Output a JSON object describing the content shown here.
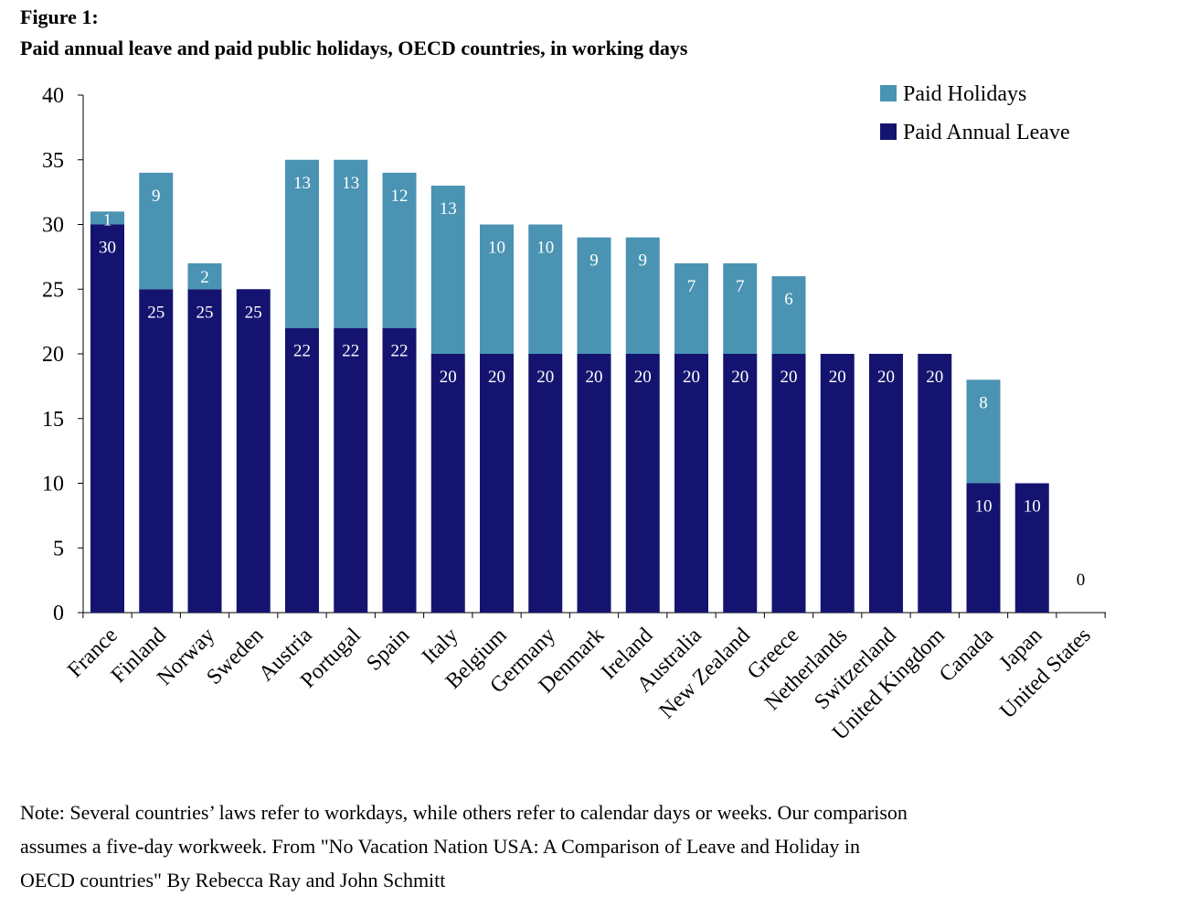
{
  "figure_label": "Figure 1:",
  "title": "Paid annual leave and paid public holidays, OECD countries, in working days",
  "note_lines": [
    "Note: Several countries’ laws refer to workdays, while others refer to calendar days or weeks. Our comparison",
    "assumes a five-day workweek. From \"No Vacation Nation USA: A Comparison of Leave and Holiday in",
    "OECD countries\" By Rebecca Ray and John Schmitt"
  ],
  "colors": {
    "annual_leave": "#141470",
    "holidays": "#4a93b3",
    "axis": "#000000"
  },
  "chart_data": {
    "type": "bar",
    "stacked": true,
    "categories": [
      "France",
      "Finland",
      "Norway",
      "Sweden",
      "Austria",
      "Portugal",
      "Spain",
      "Italy",
      "Belgium",
      "Germany",
      "Denmark",
      "Ireland",
      "Australia",
      "New Zealand",
      "Greece",
      "Netherlands",
      "Switzerland",
      "United Kingdom",
      "Canada",
      "Japan",
      "United States"
    ],
    "series": [
      {
        "name": "Paid Annual Leave",
        "color": "#141470",
        "values": [
          30,
          25,
          25,
          25,
          22,
          22,
          22,
          20,
          20,
          20,
          20,
          20,
          20,
          20,
          20,
          20,
          20,
          20,
          10,
          10,
          0
        ]
      },
      {
        "name": "Paid Holidays",
        "color": "#4a93b3",
        "values": [
          1,
          9,
          2,
          0,
          13,
          13,
          12,
          13,
          10,
          10,
          9,
          9,
          7,
          7,
          6,
          0,
          0,
          0,
          8,
          0,
          0
        ]
      }
    ],
    "ylim": [
      0,
      40
    ],
    "yticks": [
      0,
      5,
      10,
      15,
      20,
      25,
      30,
      35,
      40
    ],
    "legend_position": "top-right",
    "data_labels": true,
    "grid": false
  }
}
